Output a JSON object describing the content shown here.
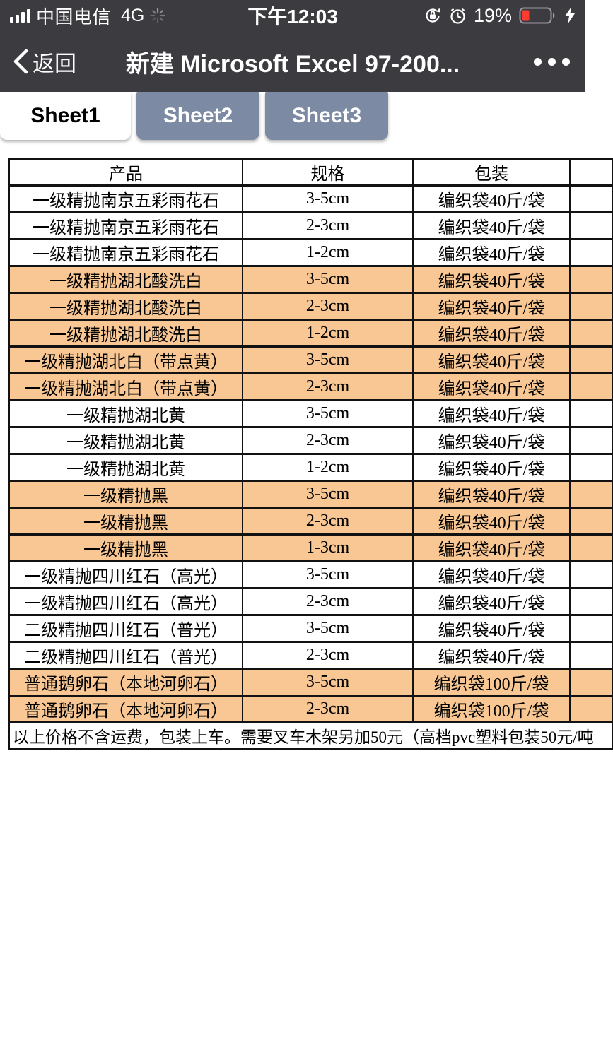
{
  "status_bar": {
    "carrier": "中国电信",
    "network": "4G",
    "time": "下午12:03",
    "battery_percent": "19%",
    "battery_color": "#ff3b30",
    "icons": [
      "signal-bars",
      "activity-spinner",
      "orientation-lock",
      "alarm-clock",
      "battery",
      "charging-bolt"
    ]
  },
  "nav_bar": {
    "back_label": "返回",
    "title": "新建 Microsoft Excel 97-200...",
    "more_icon": "ellipsis"
  },
  "tabs": [
    {
      "label": "Sheet1",
      "active": true
    },
    {
      "label": "Sheet2",
      "active": false
    },
    {
      "label": "Sheet3",
      "active": false
    }
  ],
  "colors": {
    "chrome_bg": "#3c3b40",
    "tab_inactive_bg": "#7c8aa4",
    "row_highlight": "#f8c793"
  },
  "table": {
    "headers": [
      "产品",
      "规格",
      "包装"
    ],
    "highlight_color": "#f8c793",
    "rows": [
      {
        "product": "一级精抛南京五彩雨花石",
        "spec": "3-5cm",
        "packaging": "编织袋40斤/袋",
        "highlighted": false
      },
      {
        "product": "一级精抛南京五彩雨花石",
        "spec": "2-3cm",
        "packaging": "编织袋40斤/袋",
        "highlighted": false
      },
      {
        "product": "一级精抛南京五彩雨花石",
        "spec": "1-2cm",
        "packaging": "编织袋40斤/袋",
        "highlighted": false
      },
      {
        "product": "一级精抛湖北酸洗白",
        "spec": "3-5cm",
        "packaging": "编织袋40斤/袋",
        "highlighted": true
      },
      {
        "product": "一级精抛湖北酸洗白",
        "spec": "2-3cm",
        "packaging": "编织袋40斤/袋",
        "highlighted": true
      },
      {
        "product": "一级精抛湖北酸洗白",
        "spec": "1-2cm",
        "packaging": "编织袋40斤/袋",
        "highlighted": true
      },
      {
        "product": "一级精抛湖北白（带点黄）",
        "spec": "3-5cm",
        "packaging": "编织袋40斤/袋",
        "highlighted": true
      },
      {
        "product": "一级精抛湖北白（带点黄）",
        "spec": "2-3cm",
        "packaging": "编织袋40斤/袋",
        "highlighted": true
      },
      {
        "product": "一级精抛湖北黄",
        "spec": "3-5cm",
        "packaging": "编织袋40斤/袋",
        "highlighted": false
      },
      {
        "product": "一级精抛湖北黄",
        "spec": "2-3cm",
        "packaging": "编织袋40斤/袋",
        "highlighted": false
      },
      {
        "product": "一级精抛湖北黄",
        "spec": "1-2cm",
        "packaging": "编织袋40斤/袋",
        "highlighted": false
      },
      {
        "product": "一级精抛黑",
        "spec": "3-5cm",
        "packaging": "编织袋40斤/袋",
        "highlighted": true
      },
      {
        "product": "一级精抛黑",
        "spec": "2-3cm",
        "packaging": "编织袋40斤/袋",
        "highlighted": true
      },
      {
        "product": "一级精抛黑",
        "spec": "1-3cm",
        "packaging": "编织袋40斤/袋",
        "highlighted": true
      },
      {
        "product": "一级精抛四川红石（高光）",
        "spec": "3-5cm",
        "packaging": "编织袋40斤/袋",
        "highlighted": false
      },
      {
        "product": "一级精抛四川红石（高光）",
        "spec": "2-3cm",
        "packaging": "编织袋40斤/袋",
        "highlighted": false
      },
      {
        "product": "二级精抛四川红石（普光）",
        "spec": "3-5cm",
        "packaging": "编织袋40斤/袋",
        "highlighted": false
      },
      {
        "product": "二级精抛四川红石（普光）",
        "spec": "2-3cm",
        "packaging": "编织袋40斤/袋",
        "highlighted": false
      },
      {
        "product": "普通鹅卵石（本地河卵石）",
        "spec": "3-5cm",
        "packaging": "编织袋100斤/袋",
        "highlighted": true
      },
      {
        "product": "普通鹅卵石（本地河卵石）",
        "spec": "2-3cm",
        "packaging": "编织袋100斤/袋",
        "highlighted": true
      }
    ],
    "footer_note": "以上价格不含运费，包装上车。需要叉车木架另加50元（高档pvc塑料包装50元/吨"
  }
}
